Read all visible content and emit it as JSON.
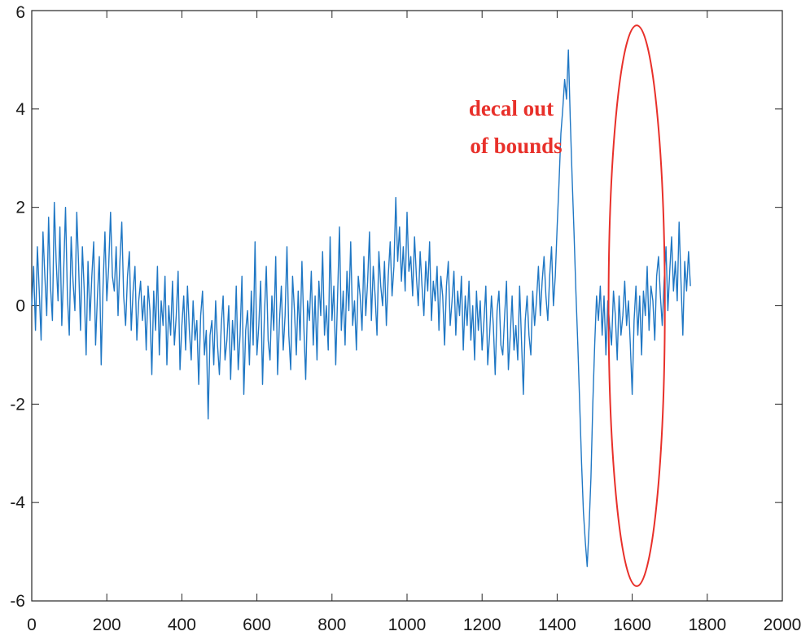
{
  "chart_data": {
    "type": "line",
    "title": "",
    "xlabel": "",
    "ylabel": "",
    "xlim": [
      0,
      2000
    ],
    "ylim": [
      -6,
      6
    ],
    "x_ticks": [
      "0",
      "200",
      "400",
      "600",
      "800",
      "1000",
      "1200",
      "1400",
      "1600",
      "1800",
      "2000"
    ],
    "y_ticks": [
      "6",
      "4",
      "2",
      "0",
      "-2",
      "-4",
      "-6"
    ],
    "grid": false,
    "line_color": "#1f77c4",
    "series": [
      {
        "x_start": 0,
        "x_step": 5,
        "values": [
          0.0,
          0.8,
          -0.5,
          1.2,
          0.3,
          -0.7,
          1.5,
          0.6,
          -0.2,
          1.8,
          0.4,
          -0.3,
          2.1,
          0.9,
          0.1,
          1.6,
          -0.4,
          0.7,
          2.0,
          0.2,
          -0.6,
          1.4,
          0.5,
          -0.1,
          1.9,
          0.8,
          -0.5,
          1.2,
          0.3,
          -1.0,
          0.9,
          -0.3,
          0.6,
          1.3,
          -0.8,
          0.2,
          1.0,
          -1.2,
          0.4,
          1.5,
          0.1,
          0.8,
          1.9,
          0.6,
          0.3,
          1.2,
          -0.2,
          0.9,
          1.7,
          0.2,
          -0.4,
          0.6,
          1.1,
          -0.5,
          0.3,
          0.8,
          -0.7,
          0.1,
          0.5,
          -0.3,
          0.2,
          -0.9,
          0.4,
          -0.1,
          -1.4,
          0.3,
          -0.5,
          0.8,
          -1.0,
          0.1,
          -0.4,
          0.6,
          -1.2,
          0.0,
          -0.6,
          0.5,
          -0.8,
          -0.2,
          0.7,
          -1.3,
          -0.4,
          0.2,
          -0.9,
          0.4,
          -0.5,
          -1.1,
          0.1,
          -0.7,
          -0.3,
          -1.6,
          -0.2,
          0.3,
          -1.0,
          -0.5,
          -2.3,
          -0.6,
          -0.3,
          -1.2,
          0.1,
          -0.8,
          -1.4,
          -0.4,
          0.2,
          -1.1,
          -0.7,
          0.0,
          -1.5,
          -0.3,
          -0.9,
          0.4,
          -1.3,
          -0.6,
          0.6,
          -1.8,
          -0.5,
          -0.1,
          -1.2,
          0.3,
          -0.8,
          1.3,
          -1.0,
          -0.4,
          0.5,
          -1.6,
          -0.2,
          0.8,
          -0.7,
          -1.1,
          0.2,
          -0.5,
          1.0,
          -1.4,
          -0.3,
          0.4,
          -0.9,
          -0.2,
          1.2,
          -0.6,
          -1.3,
          0.6,
          -0.1,
          -1.0,
          0.3,
          -0.7,
          0.9,
          -0.4,
          -1.5,
          0.1,
          -0.3,
          0.7,
          -0.8,
          0.2,
          -1.1,
          0.5,
          -0.2,
          1.1,
          -0.6,
          0.0,
          -0.9,
          1.4,
          -0.3,
          0.4,
          -1.2,
          0.2,
          1.6,
          -0.5,
          0.3,
          -0.8,
          0.7,
          -0.1,
          1.3,
          -0.4,
          0.1,
          -0.9,
          0.6,
          0.2,
          -0.5,
          1.0,
          -0.2,
          0.5,
          1.5,
          -0.3,
          0.8,
          0.2,
          -0.6,
          1.1,
          0.4,
          0.0,
          0.9,
          -0.4,
          0.6,
          1.3,
          0.2,
          0.8,
          2.2,
          0.9,
          1.6,
          0.5,
          1.2,
          0.3,
          1.9,
          0.7,
          1.0,
          0.2,
          1.4,
          0.6,
          0.0,
          1.1,
          0.4,
          -0.2,
          0.9,
          0.3,
          1.3,
          -0.3,
          0.5,
          0.1,
          0.8,
          -0.5,
          0.6,
          0.2,
          -0.8,
          0.4,
          0.9,
          -0.4,
          0.1,
          0.7,
          -0.6,
          0.3,
          -0.2,
          0.6,
          -0.9,
          0.2,
          -0.4,
          0.5,
          -0.7,
          0.0,
          -1.1,
          0.3,
          -0.5,
          0.1,
          -0.9,
          -0.3,
          0.4,
          -1.2,
          -0.6,
          0.2,
          -0.4,
          -1.4,
          -0.1,
          0.3,
          -0.8,
          -1.0,
          -0.2,
          0.5,
          -1.3,
          -0.6,
          0.2,
          -0.9,
          -0.4,
          -1.1,
          0.4,
          -0.7,
          -1.8,
          -0.3,
          0.2,
          -0.6,
          -1.0,
          0.3,
          -0.4,
          0.1,
          0.8,
          -0.2,
          0.5,
          1.0,
          0.2,
          -0.3,
          0.6,
          1.2,
          0.0,
          0.6,
          1.6,
          2.5,
          3.5,
          4.0,
          4.6,
          4.2,
          5.2,
          3.8,
          2.6,
          1.5,
          0.3,
          -0.8,
          -2.0,
          -3.2,
          -4.2,
          -4.8,
          -5.3,
          -4.5,
          -3.5,
          -2.0,
          -0.8,
          0.2,
          -0.3,
          0.4,
          -0.6,
          0.2,
          -1.0,
          0.1,
          -0.4,
          -0.8,
          0.3,
          -0.2,
          -1.1,
          0.2,
          -0.6,
          -0.2,
          0.5,
          -0.4,
          0.1,
          -0.8,
          -1.8,
          -0.3,
          0.4,
          -0.6,
          0.2,
          -1.0,
          0.3,
          -0.2,
          0.8,
          -0.5,
          0.4,
          0.1,
          -0.7,
          0.6,
          1.0,
          0.2,
          -0.4,
          0.5,
          1.2,
          -0.1,
          0.7,
          1.4,
          0.3,
          0.9,
          0.1,
          1.7,
          0.5,
          -0.6,
          0.9,
          0.3,
          1.1,
          0.4
        ]
      }
    ],
    "annotation": {
      "lines": [
        "decal out",
        "of bounds"
      ],
      "color": "#e8302a",
      "ellipse_center": [
        1612,
        0.0
      ],
      "ellipse_radius": [
        75,
        5.7
      ]
    }
  }
}
